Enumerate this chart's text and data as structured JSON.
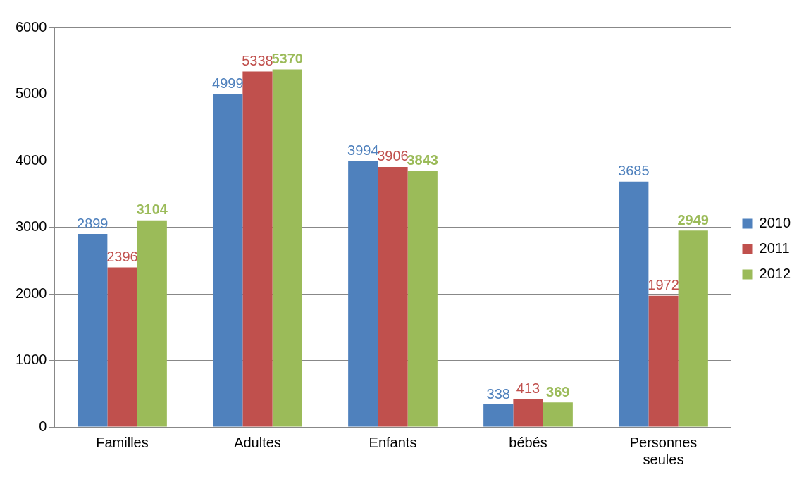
{
  "chart_data": {
    "type": "bar",
    "categories": [
      "Familles",
      "Adultes",
      "Enfants",
      "bébés",
      "Personnes seules"
    ],
    "series": [
      {
        "name": "2010",
        "color": "#4f81bd",
        "values": [
          2899,
          4999,
          3994,
          338,
          3685
        ]
      },
      {
        "name": "2011",
        "color": "#c0504d",
        "values": [
          2396,
          5338,
          3906,
          413,
          1972
        ]
      },
      {
        "name": "2012",
        "color": "#9bbb59",
        "values": [
          3104,
          5370,
          3843,
          369,
          2949
        ]
      }
    ],
    "ylim": [
      0,
      6000
    ],
    "yticks": [
      0,
      1000,
      2000,
      3000,
      4000,
      5000,
      6000
    ],
    "grid": "y",
    "legend": "right",
    "data_labels": true
  }
}
